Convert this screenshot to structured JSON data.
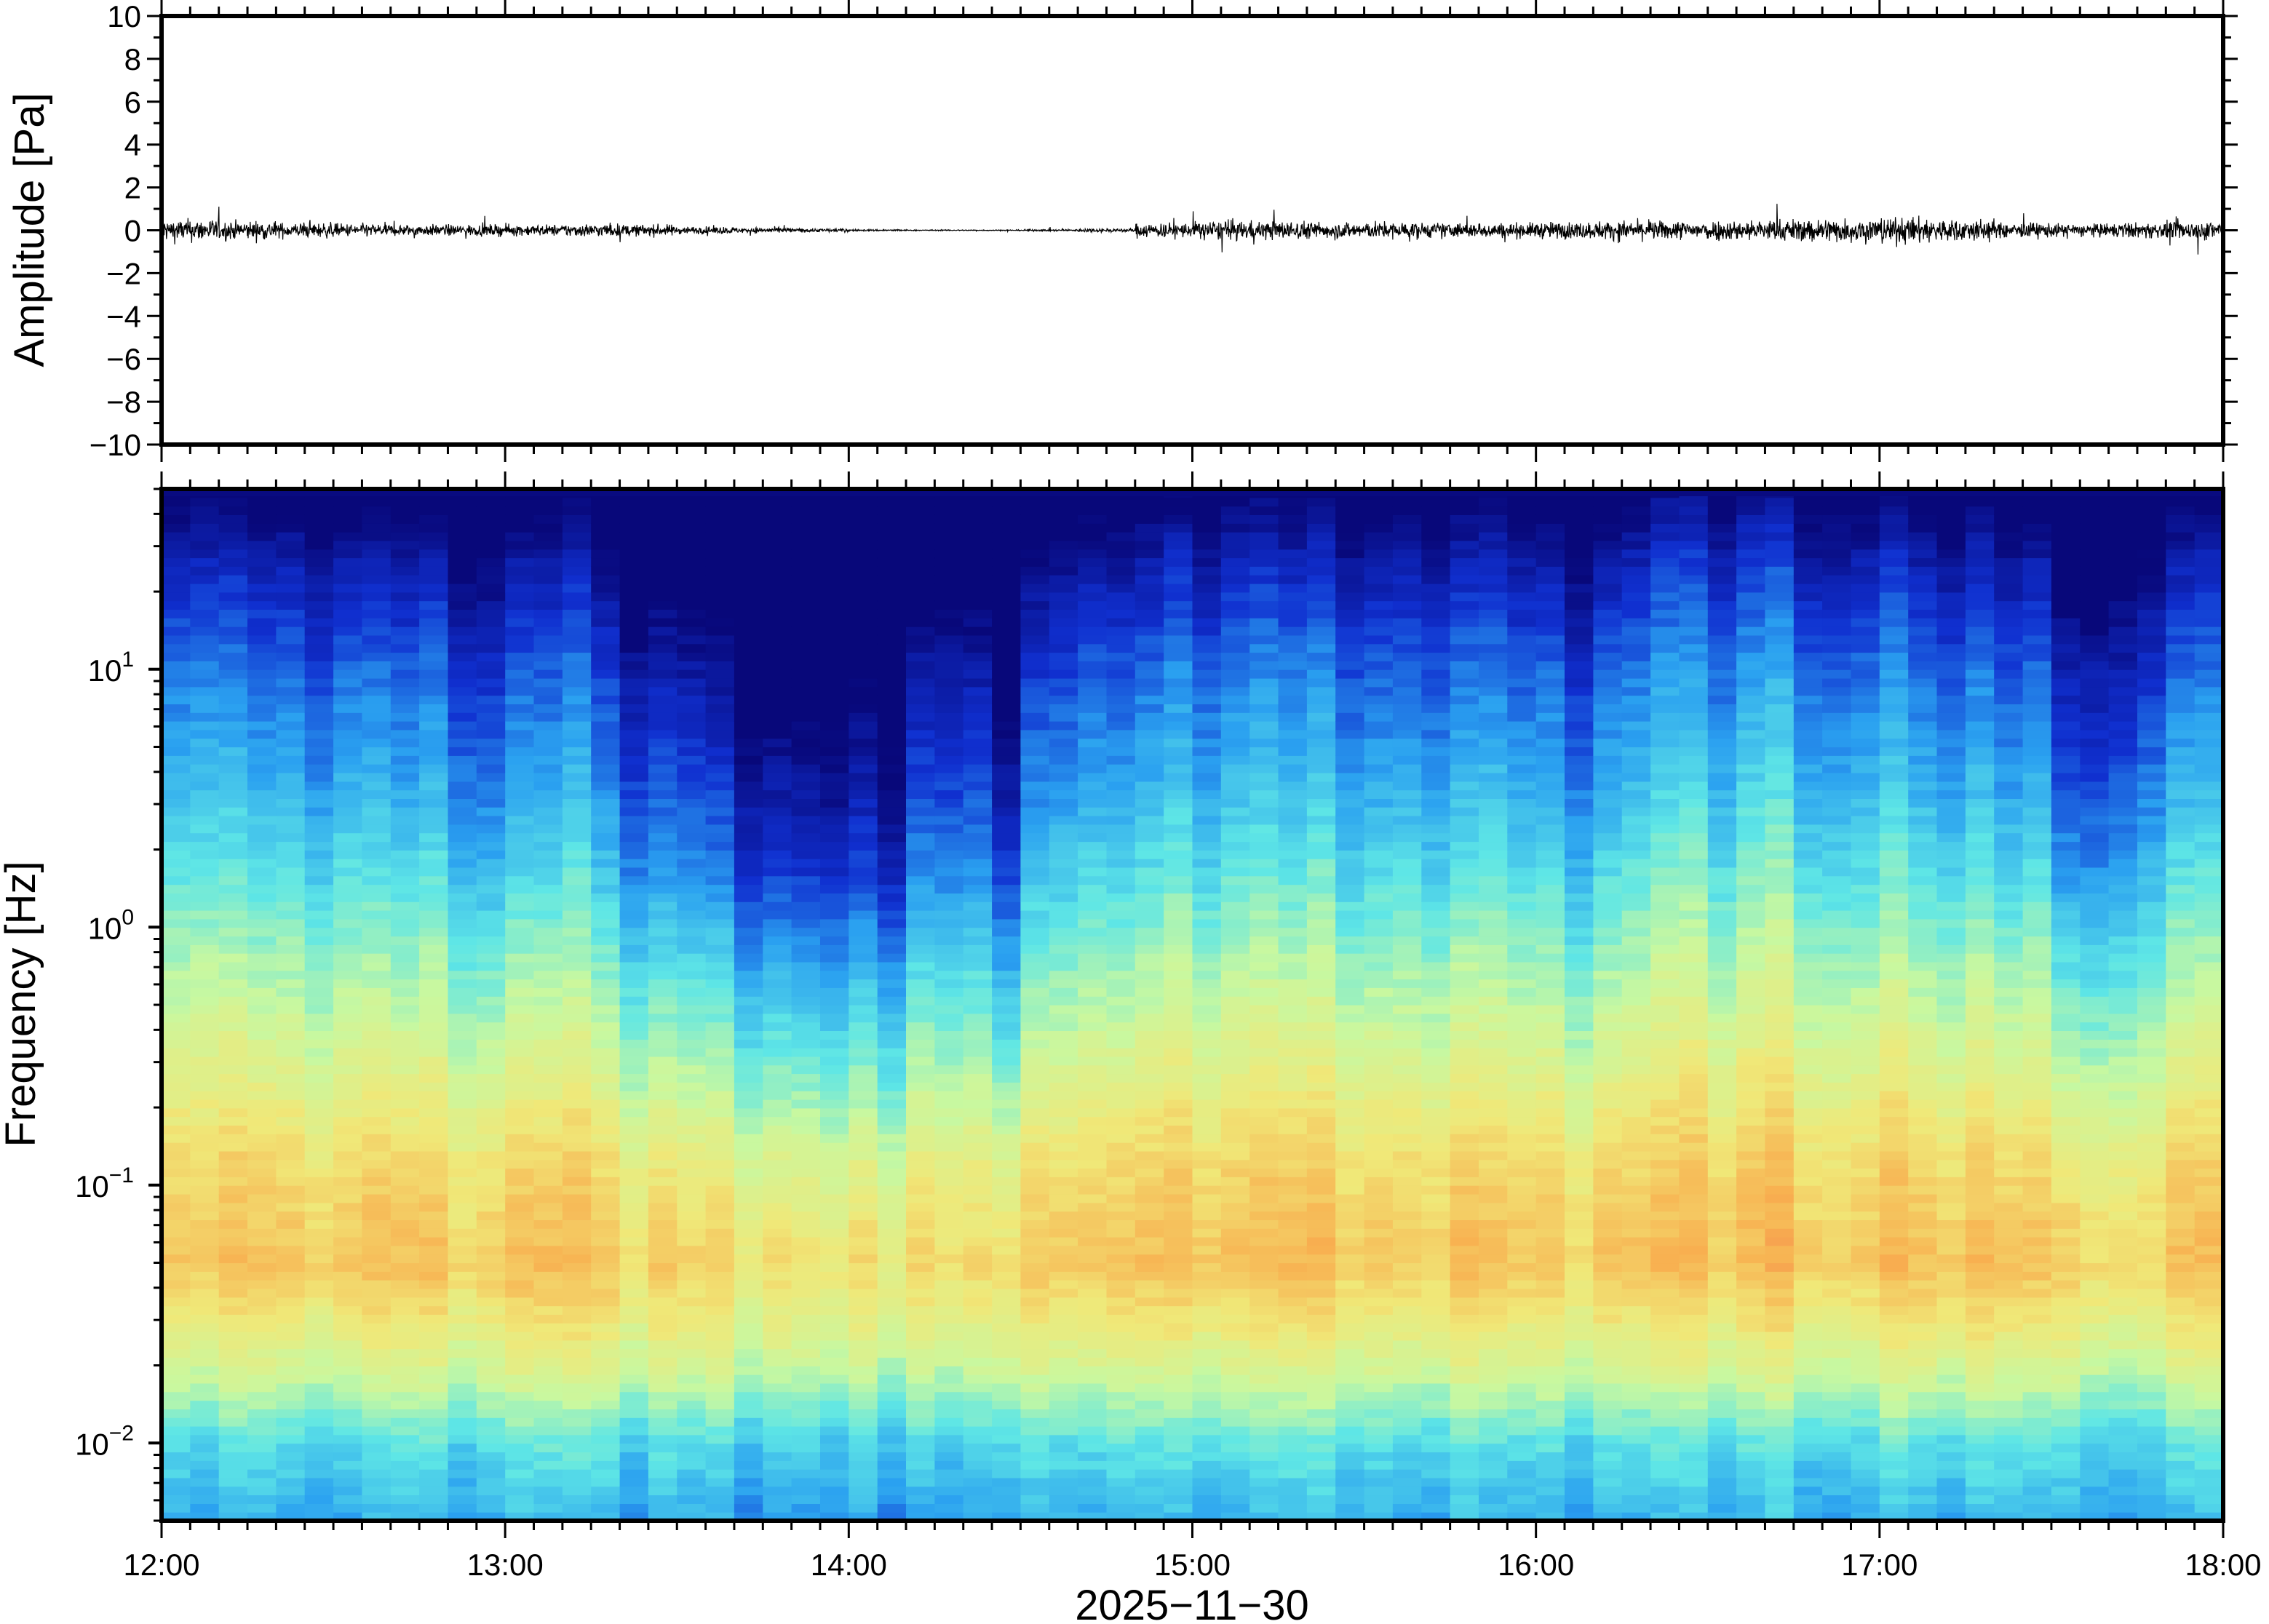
{
  "chart_data": [
    {
      "type": "line",
      "ylabel": "Amplitude [Pa]",
      "ylim": [
        -10,
        10
      ],
      "yticks": [
        "10",
        "8",
        "6",
        "4",
        "2",
        "0",
        "−2",
        "−4",
        "−6",
        "−8",
        "−10"
      ],
      "xlim": [
        "12:00",
        "18:00"
      ],
      "envelope_pa_per_10min": [
        0.6,
        0.5,
        0.4,
        0.35,
        0.3,
        0.3,
        0.3,
        0.35,
        0.3,
        0.2,
        0.15,
        0.1,
        0.05,
        0.03,
        0.03,
        0.05,
        0.1,
        0.4,
        0.5,
        0.5,
        0.45,
        0.45,
        0.4,
        0.4,
        0.45,
        0.5,
        0.5,
        0.55,
        0.6,
        0.65,
        0.7,
        0.6,
        0.4,
        0.35,
        0.4,
        0.5
      ],
      "line_color": "#000000"
    },
    {
      "type": "heatmap",
      "ylabel": "Frequency [Hz]",
      "xlabel": "2025−11−30",
      "yscale": "log",
      "ylim_hz": [
        0.005,
        50
      ],
      "yticks": [
        {
          "base": "10",
          "exp": "1"
        },
        {
          "base": "10",
          "exp": "0"
        },
        {
          "base": "10",
          "exp": "−1"
        },
        {
          "base": "10",
          "exp": "−2"
        }
      ],
      "xticks": [
        "12:00",
        "13:00",
        "14:00",
        "15:00",
        "16:00",
        "17:00",
        "18:00"
      ],
      "time_bin_minutes": 5,
      "quietness_per_bin": [
        0.2,
        0.1,
        0.2,
        0.3,
        0.2,
        0.3,
        0.2,
        0.3,
        0.4,
        0.3,
        0.4,
        0.5,
        0.4,
        0.4,
        0.3,
        0.5,
        0.6,
        0.7,
        0.7,
        0.8,
        0.9,
        1.0,
        1.0,
        1.0,
        1.0,
        1.0,
        0.7,
        0.6,
        0.6,
        1.0,
        0.5,
        0.4,
        0.3,
        0.4,
        0.3,
        0.2,
        0.3,
        0.2,
        0.2,
        0.3,
        0.2,
        0.3,
        0.3,
        0.2,
        0.3,
        0.3,
        0.2,
        0.3,
        0.3,
        0.4,
        0.3,
        0.2,
        0.1,
        0.1,
        0.2,
        0.1,
        0.1,
        0.2,
        0.2,
        0.2,
        0.2,
        0.3,
        0.3,
        0.3,
        0.4,
        0.3,
        0.7,
        0.6,
        0.5,
        0.4,
        0.3,
        0.3
      ],
      "colormap": [
        "#08087a",
        "#1030d0",
        "#2aa0f0",
        "#5ee6e6",
        "#c8f8a0",
        "#f0e878",
        "#f8b050",
        "#f06a50"
      ]
    }
  ]
}
